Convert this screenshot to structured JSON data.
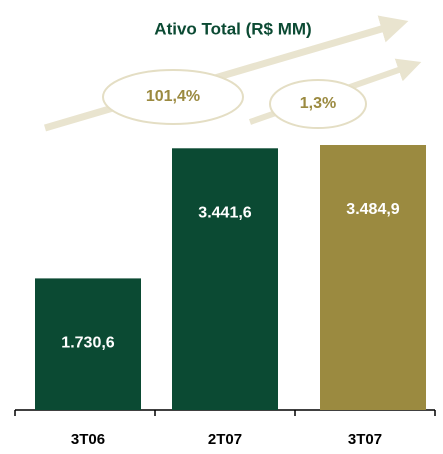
{
  "chart_data": {
    "type": "bar",
    "title": "Ativo Total (R$ MM)",
    "categories": [
      "3T06",
      "2T07",
      "3T07"
    ],
    "values": [
      1730.6,
      3441.6,
      3484.9
    ],
    "value_labels": [
      "1.730,6",
      "3.441,6",
      "3.484,9"
    ],
    "colors": [
      "#0b4a33",
      "#0b4a33",
      "#9b8a40"
    ],
    "annotations": [
      "101,4%",
      "1,3%"
    ]
  }
}
